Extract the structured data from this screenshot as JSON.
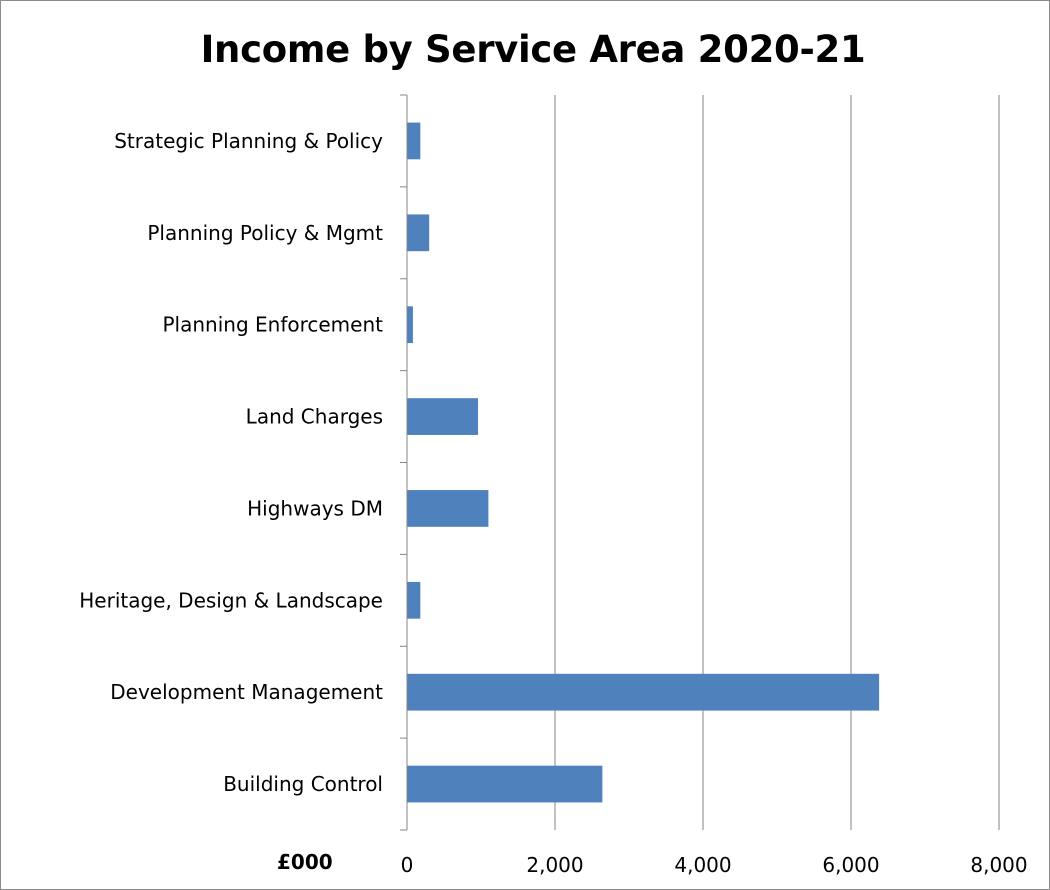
{
  "chart_data": {
    "type": "bar",
    "orientation": "horizontal",
    "title": "Income by Service Area 2020-21",
    "unit_label": "£000",
    "categories": [
      "Building Control",
      "Development Management",
      "Heritage, Design & Landscape",
      "Highways DM",
      "Land Charges",
      "Planning Enforcement",
      "Planning Policy & Mgmt",
      "Strategic Planning & Policy"
    ],
    "values": [
      2640,
      6380,
      180,
      1100,
      960,
      80,
      300,
      180
    ],
    "xlim": [
      0,
      8000
    ],
    "xticks": [
      0,
      2000,
      4000,
      6000,
      8000
    ],
    "xtick_labels": [
      "0",
      "2,000",
      "4,000",
      "6,000",
      "8,000"
    ],
    "grid": "vertical",
    "legend": "none",
    "bar_color": "#4f81bd"
  }
}
